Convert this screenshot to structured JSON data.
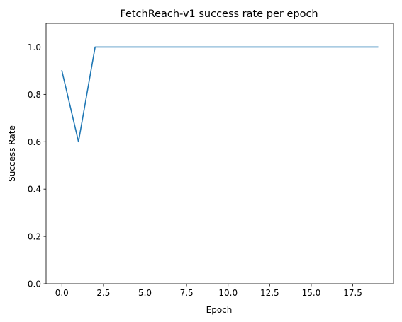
{
  "chart_data": {
    "type": "line",
    "title": "FetchReach-v1 success rate per epoch",
    "xlabel": "Epoch",
    "ylabel": "Success Rate",
    "xlim": [
      -0.95,
      19.95
    ],
    "ylim": [
      0.0,
      1.1
    ],
    "xticks": [
      0.0,
      2.5,
      5.0,
      7.5,
      10.0,
      12.5,
      15.0,
      17.5
    ],
    "xtick_labels": [
      "0.0",
      "2.5",
      "5.0",
      "7.5",
      "10.0",
      "12.5",
      "15.0",
      "17.5"
    ],
    "yticks": [
      0.0,
      0.2,
      0.4,
      0.6,
      0.8,
      1.0
    ],
    "ytick_labels": [
      "0.0",
      "0.2",
      "0.4",
      "0.6",
      "0.8",
      "1.0"
    ],
    "grid": false,
    "legend": "none",
    "series": [
      {
        "color": "#1f77b4",
        "x": [
          0,
          1,
          2,
          3,
          4,
          5,
          6,
          7,
          8,
          9,
          10,
          11,
          12,
          13,
          14,
          15,
          16,
          17,
          18,
          19
        ],
        "y": [
          0.9,
          0.6,
          1.0,
          1.0,
          1.0,
          1.0,
          1.0,
          1.0,
          1.0,
          1.0,
          1.0,
          1.0,
          1.0,
          1.0,
          1.0,
          1.0,
          1.0,
          1.0,
          1.0,
          1.0
        ]
      }
    ]
  }
}
